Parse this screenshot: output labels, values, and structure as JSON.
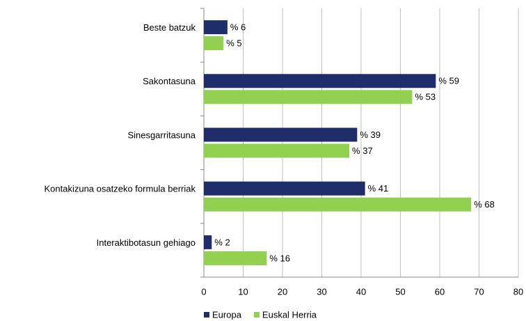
{
  "chart_data": {
    "type": "bar",
    "orientation": "horizontal",
    "categories": [
      "Beste batzuk",
      "Sakontasuna",
      "Sinesgarritasuna",
      "Kontakizuna osatzeko formula berriak",
      "Interaktibotasun gehiago"
    ],
    "series": [
      {
        "name": "Europa",
        "color": "#1f2d6b",
        "values": [
          6,
          59,
          39,
          41,
          2
        ],
        "value_labels": [
          "% 6",
          "% 59",
          "% 39",
          "% 41",
          "% 2"
        ]
      },
      {
        "name": "Euskal Herria",
        "color": "#92d050",
        "values": [
          5,
          53,
          37,
          68,
          16
        ],
        "value_labels": [
          "% 5",
          "% 53",
          "% 37",
          "% 68",
          "% 16"
        ]
      }
    ],
    "xlim": [
      0,
      80
    ],
    "xticks": [
      0,
      10,
      20,
      30,
      40,
      50,
      60,
      70,
      80
    ],
    "grid": true,
    "legend": "bottom"
  }
}
